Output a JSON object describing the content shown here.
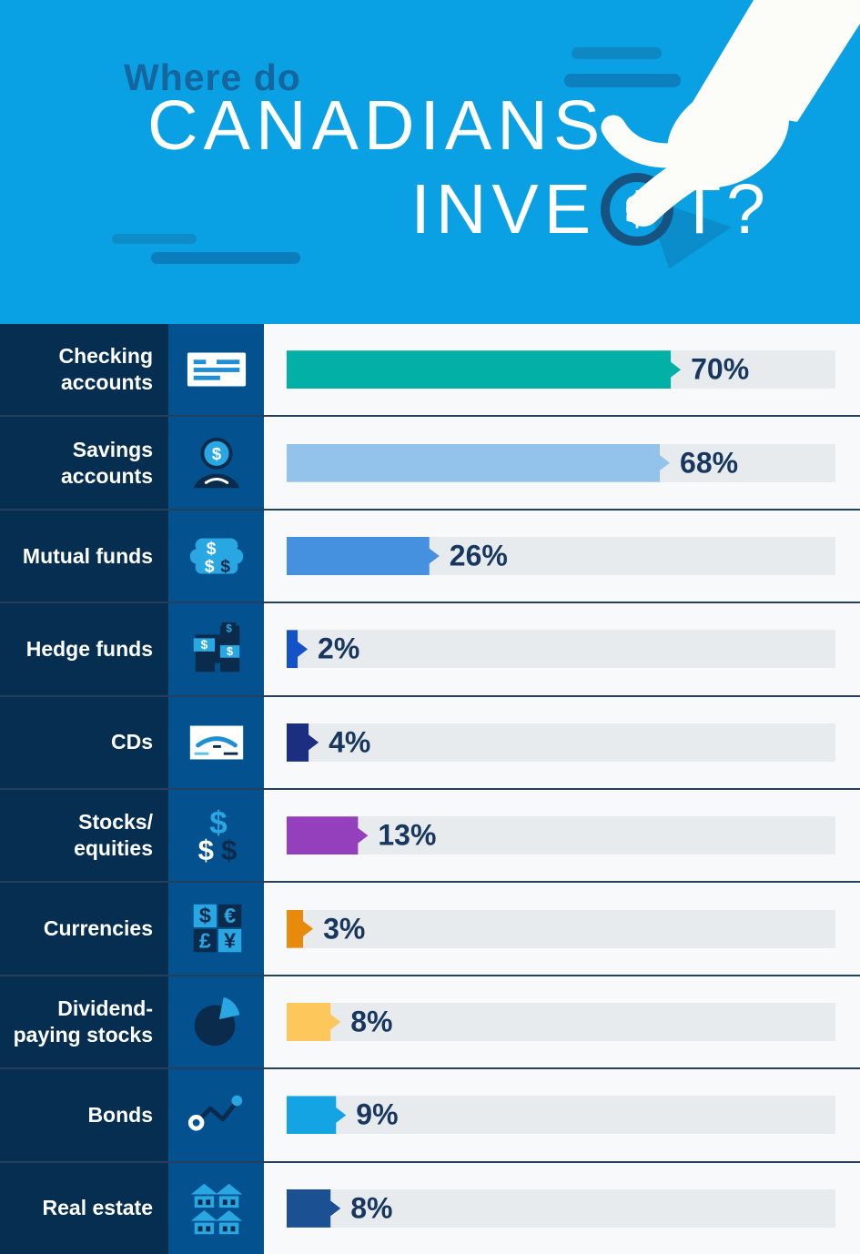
{
  "header": {
    "title_small": "Where do",
    "title_line2": "CANADIANS",
    "title_line3_pre": "INVE",
    "title_line3_post": "T?",
    "coin_symbol": "$",
    "background_color": "#09a1e3",
    "small_title_color": "#15669f",
    "coin_ring_color": "#175380"
  },
  "palette": {
    "label_column_bg": "#052e50",
    "icon_column_bg": "#03528f",
    "bar_area_bg": "#f8f9fa",
    "bar_track": "#e8ebee",
    "value_text": "#17375f",
    "row_separator": "#24405d",
    "icon_light_blue": "#29a7e2",
    "icon_dark_navy": "#0b2b4d"
  },
  "chart_data": {
    "type": "bar",
    "orientation": "horizontal",
    "title": "Where do Canadians invest?",
    "unit": "%",
    "xlim": [
      0,
      100
    ],
    "grid": false,
    "legend": false,
    "categories": [
      "Checking accounts",
      "Savings accounts",
      "Mutual funds",
      "Hedge funds",
      "CDs",
      "Stocks/equities",
      "Currencies",
      "Dividend-paying stocks",
      "Bonds",
      "Real estate"
    ],
    "values": [
      70,
      68,
      26,
      2,
      4,
      13,
      3,
      8,
      9,
      8
    ],
    "bar_colors": [
      "#03b0a6",
      "#93c2ea",
      "#4590df",
      "#1254c8",
      "#1c2e80",
      "#9440bd",
      "#e88b0c",
      "#fdc75b",
      "#14a4e4",
      "#1b5093"
    ]
  },
  "rows": [
    {
      "label": "Checking\naccounts",
      "value_label": "70%",
      "pct": 70,
      "color": "#03b0a6",
      "icon": "cheque-icon"
    },
    {
      "label": "Savings\naccounts",
      "value_label": "68%",
      "pct": 68,
      "color": "#93c2ea",
      "icon": "person-coin-icon"
    },
    {
      "label": "Mutual funds",
      "value_label": "26%",
      "pct": 26,
      "color": "#4590df",
      "icon": "money-bundle-icon"
    },
    {
      "label": "Hedge funds",
      "value_label": "2%",
      "pct": 2,
      "color": "#1254c8",
      "icon": "buildings-icon"
    },
    {
      "label": "CDs",
      "value_label": "4%",
      "pct": 4,
      "color": "#1c2e80",
      "icon": "certificate-icon"
    },
    {
      "label": "Stocks/\nequities",
      "value_label": "13%",
      "pct": 13,
      "color": "#9440bd",
      "icon": "dollar-signs-icon"
    },
    {
      "label": "Currencies",
      "value_label": "3%",
      "pct": 3,
      "color": "#e88b0c",
      "icon": "currency-grid-icon"
    },
    {
      "label": "Dividend-\npaying stocks",
      "value_label": "8%",
      "pct": 8,
      "color": "#fdc75b",
      "icon": "pie-chart-icon"
    },
    {
      "label": "Bonds",
      "value_label": "9%",
      "pct": 9,
      "color": "#14a4e4",
      "icon": "line-graph-icon"
    },
    {
      "label": "Real estate",
      "value_label": "8%",
      "pct": 8,
      "color": "#1b5093",
      "icon": "houses-icon"
    }
  ]
}
